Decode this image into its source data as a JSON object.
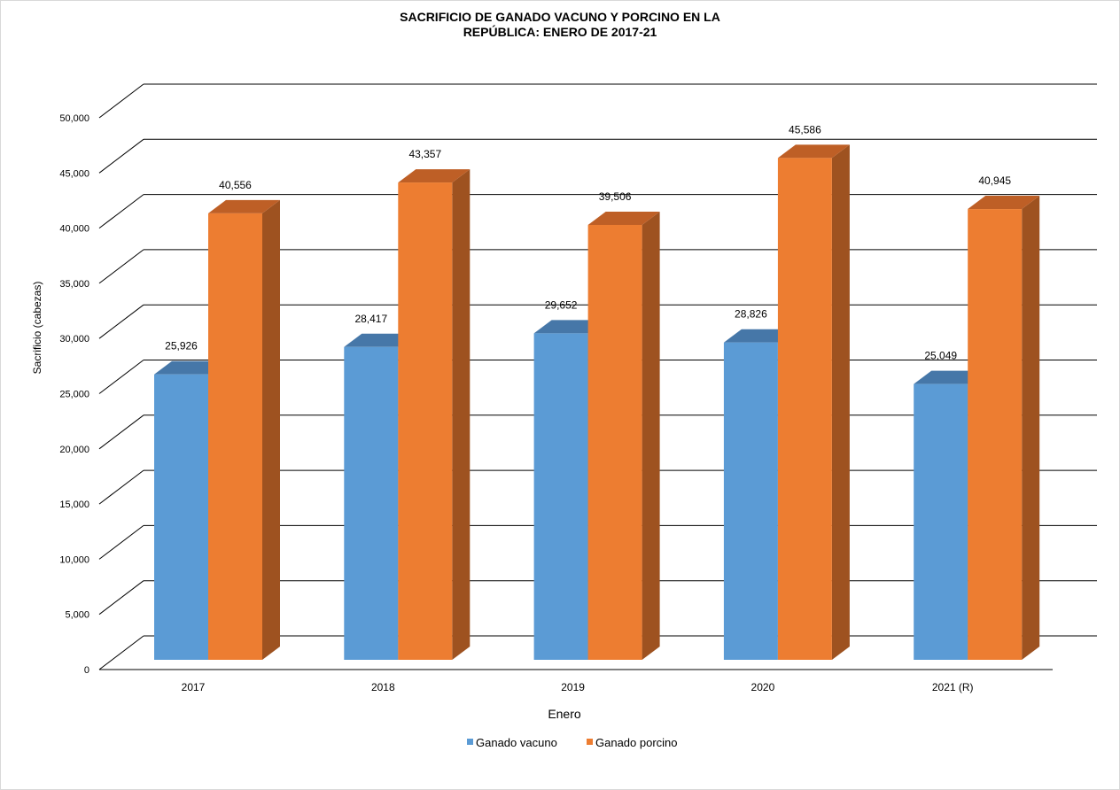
{
  "chart_data": {
    "type": "bar",
    "title_lines": [
      "SACRIFICIO DE GANADO VACUNO Y PORCINO EN LA",
      "REPÚBLICA: ENERO DE 2017-21"
    ],
    "xlabel": "Enero",
    "ylabel": "Sacrificio (cabezas)",
    "ylim": [
      0,
      50000
    ],
    "yticks": [
      0,
      5000,
      10000,
      15000,
      20000,
      25000,
      30000,
      35000,
      40000,
      45000,
      50000
    ],
    "ytick_labels": [
      "0",
      "5,000",
      "10,000",
      "15,000",
      "20,000",
      "25,000",
      "30,000",
      "35,000",
      "40,000",
      "45,000",
      "50,000"
    ],
    "categories": [
      "2017",
      "2018",
      "2019",
      "2020",
      "2021 (R)"
    ],
    "series": [
      {
        "name": "Ganado vacuno",
        "values": [
          25926,
          28417,
          29652,
          28826,
          25049
        ],
        "labels": [
          "25,926",
          "28,417",
          "29,652",
          "28,826",
          "25,049"
        ],
        "color": "#5B9BD5"
      },
      {
        "name": "Ganado porcino",
        "values": [
          40556,
          43357,
          39506,
          45586,
          40945
        ],
        "labels": [
          "40,556",
          "43,357",
          "39,506",
          "45,586",
          "40,945"
        ],
        "color": "#ED7D31"
      }
    ],
    "grid": true,
    "style": "3d-clustered-column",
    "legend": "bottom"
  }
}
